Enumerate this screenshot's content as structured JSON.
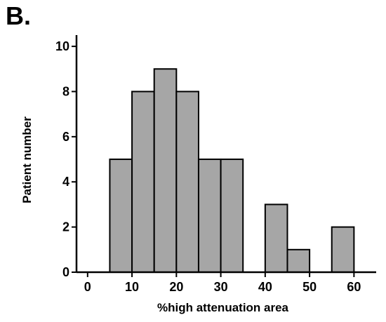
{
  "panel_label": "B.",
  "chart_data": {
    "type": "bar",
    "title": "",
    "xlabel": "%high attenuation area",
    "ylabel": "Patient number",
    "xlim": [
      -2.5,
      65
    ],
    "ylim": [
      0,
      10.5
    ],
    "x_ticks": [
      0,
      10,
      20,
      30,
      40,
      50,
      60
    ],
    "y_ticks": [
      0,
      2,
      4,
      6,
      8,
      10
    ],
    "bin_width": 5,
    "bins": [
      {
        "start": 5,
        "end": 10,
        "value": 5
      },
      {
        "start": 10,
        "end": 15,
        "value": 8
      },
      {
        "start": 15,
        "end": 20,
        "value": 9
      },
      {
        "start": 20,
        "end": 25,
        "value": 8
      },
      {
        "start": 25,
        "end": 30,
        "value": 5
      },
      {
        "start": 30,
        "end": 35,
        "value": 5
      },
      {
        "start": 40,
        "end": 45,
        "value": 3
      },
      {
        "start": 45,
        "end": 50,
        "value": 1
      },
      {
        "start": 55,
        "end": 60,
        "value": 2
      }
    ],
    "bar_color": "#a6a6a6",
    "grid": false
  }
}
